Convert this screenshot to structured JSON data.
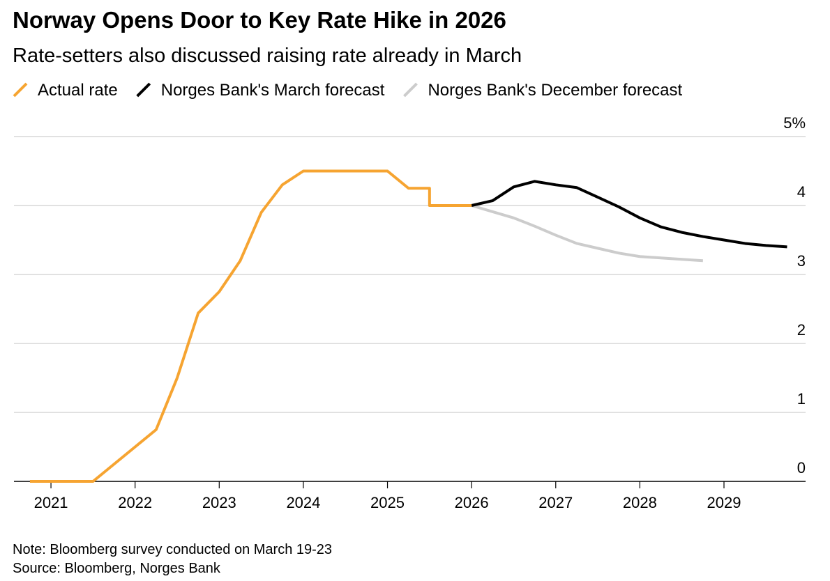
{
  "chart_data": {
    "type": "line",
    "title": "Norway Opens Door to Key Rate Hike in 2026",
    "subtitle": "Rate-setters also discussed raising rate already in March",
    "notes": [
      "Note: Bloomberg survey conducted on March 19-23",
      "Source: Bloomberg, Norges Bank"
    ],
    "series": [
      {
        "name": "Actual rate",
        "color": "#f6a431",
        "x": [
          2020.75,
          2021.25,
          2021.5,
          2021.75,
          2022.0,
          2022.25,
          2022.5,
          2022.75,
          2023.0,
          2023.25,
          2023.5,
          2023.75,
          2024.0,
          2025.0,
          2025.25,
          2025.5,
          2025.5,
          2026.0
        ],
        "values": [
          0,
          0,
          0,
          0.25,
          0.5,
          0.75,
          1.5,
          2.44,
          2.75,
          3.2,
          3.9,
          4.3,
          4.5,
          4.5,
          4.25,
          4.25,
          4.0,
          4.0
        ]
      },
      {
        "name": "Norges Bank's March forecast",
        "color": "#000000",
        "x": [
          2026.0,
          2026.25,
          2026.5,
          2026.75,
          2027.0,
          2027.25,
          2027.5,
          2027.75,
          2028.0,
          2028.25,
          2028.5,
          2028.75,
          2029.0,
          2029.25,
          2029.5,
          2029.75
        ],
        "values": [
          4.0,
          4.07,
          4.27,
          4.35,
          4.3,
          4.26,
          4.12,
          3.98,
          3.82,
          3.69,
          3.61,
          3.55,
          3.5,
          3.45,
          3.42,
          3.4
        ]
      },
      {
        "name": "Norges Bank's December forecast",
        "color": "#cccccc",
        "x": [
          2026.0,
          2026.25,
          2026.5,
          2026.75,
          2027.0,
          2027.25,
          2027.5,
          2027.75,
          2028.0,
          2028.25,
          2028.5,
          2028.75
        ],
        "values": [
          4.0,
          3.91,
          3.82,
          3.7,
          3.57,
          3.45,
          3.38,
          3.31,
          3.26,
          3.24,
          3.22,
          3.2
        ]
      }
    ],
    "xlim": [
      2020.56,
      2029.97
    ],
    "xticks": [
      2021,
      2022,
      2023,
      2024,
      2025,
      2026,
      2027,
      2028,
      2029
    ],
    "ylim": [
      0,
      5
    ],
    "yticks": [
      0,
      1,
      2,
      3,
      4,
      {
        "value": 5,
        "label": "5%"
      }
    ],
    "grid": true
  }
}
